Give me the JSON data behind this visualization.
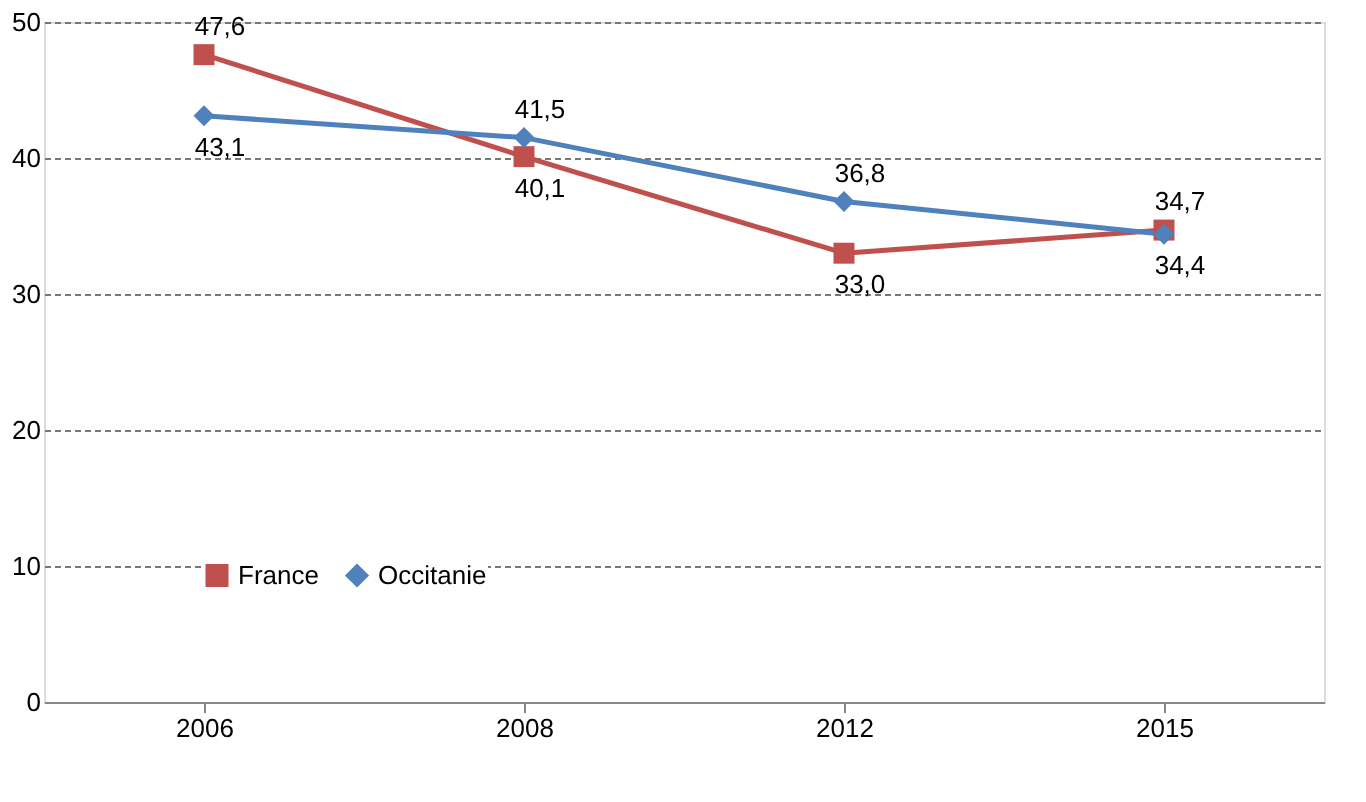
{
  "chart_data": {
    "type": "line",
    "categories": [
      "2006",
      "2008",
      "2012",
      "2015"
    ],
    "series": [
      {
        "name": "France",
        "color": "#c0504d",
        "values": [
          47.6,
          40.1,
          33.0,
          34.7
        ],
        "value_labels": [
          "47,6",
          "40,1",
          "33,0",
          "34,7"
        ],
        "marker": "square"
      },
      {
        "name": "Occitanie",
        "color": "#4f81bd",
        "values": [
          43.1,
          41.5,
          36.8,
          34.4
        ],
        "value_labels": [
          "43,1",
          "41,5",
          "36,8",
          "34,4"
        ],
        "marker": "diamond"
      }
    ],
    "ylim": [
      0,
      50
    ],
    "yticks": [
      0,
      10,
      20,
      30,
      40,
      50
    ],
    "grid": "y",
    "legend": "bottom left",
    "line_style": "solid"
  }
}
